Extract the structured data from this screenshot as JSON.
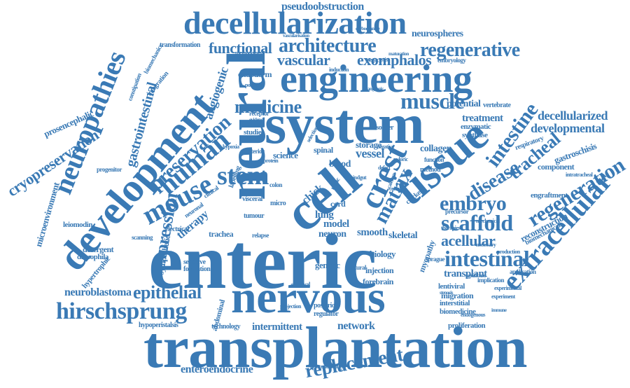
{
  "cloud": {
    "color": "#3a7ab5",
    "background": "#ffffff",
    "words": [
      "enteric",
      "transplantation",
      "nervous",
      "system",
      "engineering",
      "neural",
      "development",
      "decellularization",
      "tissue",
      "cell",
      "neuropathies",
      "stem",
      "mouse",
      "human",
      "architecture",
      "extracellular",
      "scaffold",
      "hirschsprung",
      "intestinal",
      "crest",
      "regenerative",
      "regeneration",
      "intestine",
      "embryo",
      "disease",
      "tracheal",
      "matrix",
      "muscle",
      "medicine",
      "epithelial",
      "replacement",
      "preservation",
      "expression",
      "functional",
      "vascular",
      "exomphalos",
      "acellular",
      "developmental",
      "decellularized",
      "cryopreservation",
      "gastrointestinal",
      "neuroblastoma",
      "angiogenic",
      "enteroendocrine",
      "pseudoobstruction",
      "therapy",
      "vessel",
      "network",
      "intermittent",
      "collagen",
      "neurospheres",
      "treatment",
      "potential",
      "chick",
      "lung",
      "model",
      "neuron",
      "smooth",
      "skeletal",
      "biology",
      "transplant",
      "injection",
      "forebrain",
      "genetic",
      "reconstruction",
      "gastroschisis",
      "component",
      "engraftment",
      "myopathy",
      "endoderm",
      "blood",
      "storage",
      "spinal",
      "cord",
      "science",
      "studies",
      "migration",
      "interstitial",
      "biomedicine",
      "lentiviral",
      "proliferation",
      "synthase",
      "enzymatic",
      "respiratory",
      "biomechanical",
      "vertebrate",
      "microenvironment",
      "leiomodin",
      "prosencephalic",
      "detergent",
      "drosophila",
      "hypertrophic",
      "sympathetic",
      "sensitive",
      "formation",
      "hypoperistalsis",
      "abdominal",
      "technology",
      "cytocontractility",
      "posterior",
      "regulator",
      "trachea",
      "electrical",
      "tumour",
      "visceral",
      "micro",
      "relapse",
      "progenitor",
      "scanning",
      "colon",
      "integration",
      "transformation",
      "methodology",
      "embryology",
      "biomechanics",
      "constipation",
      "clinical",
      "neuronal",
      "carbocyanine",
      "vascularisation",
      "induction",
      "maturation",
      "megacystis",
      "postnatal",
      "receptor",
      "evidence",
      "ganglionic",
      "nitric",
      "chicken",
      "method",
      "function",
      "defect",
      "stenosis",
      "sprague",
      "application",
      "necessary",
      "production",
      "experimental",
      "implication",
      "significant",
      "precursor",
      "therapies",
      "mechanical",
      "intratracheal",
      "experiment",
      "endogenous",
      "immune",
      "natural",
      "survival",
      "projection",
      "anterior",
      "hypoxia",
      "labelling",
      "protein",
      "negative",
      "selection",
      "disorder",
      "central",
      "calcium",
      "pyloric",
      "hindgut"
    ]
  }
}
